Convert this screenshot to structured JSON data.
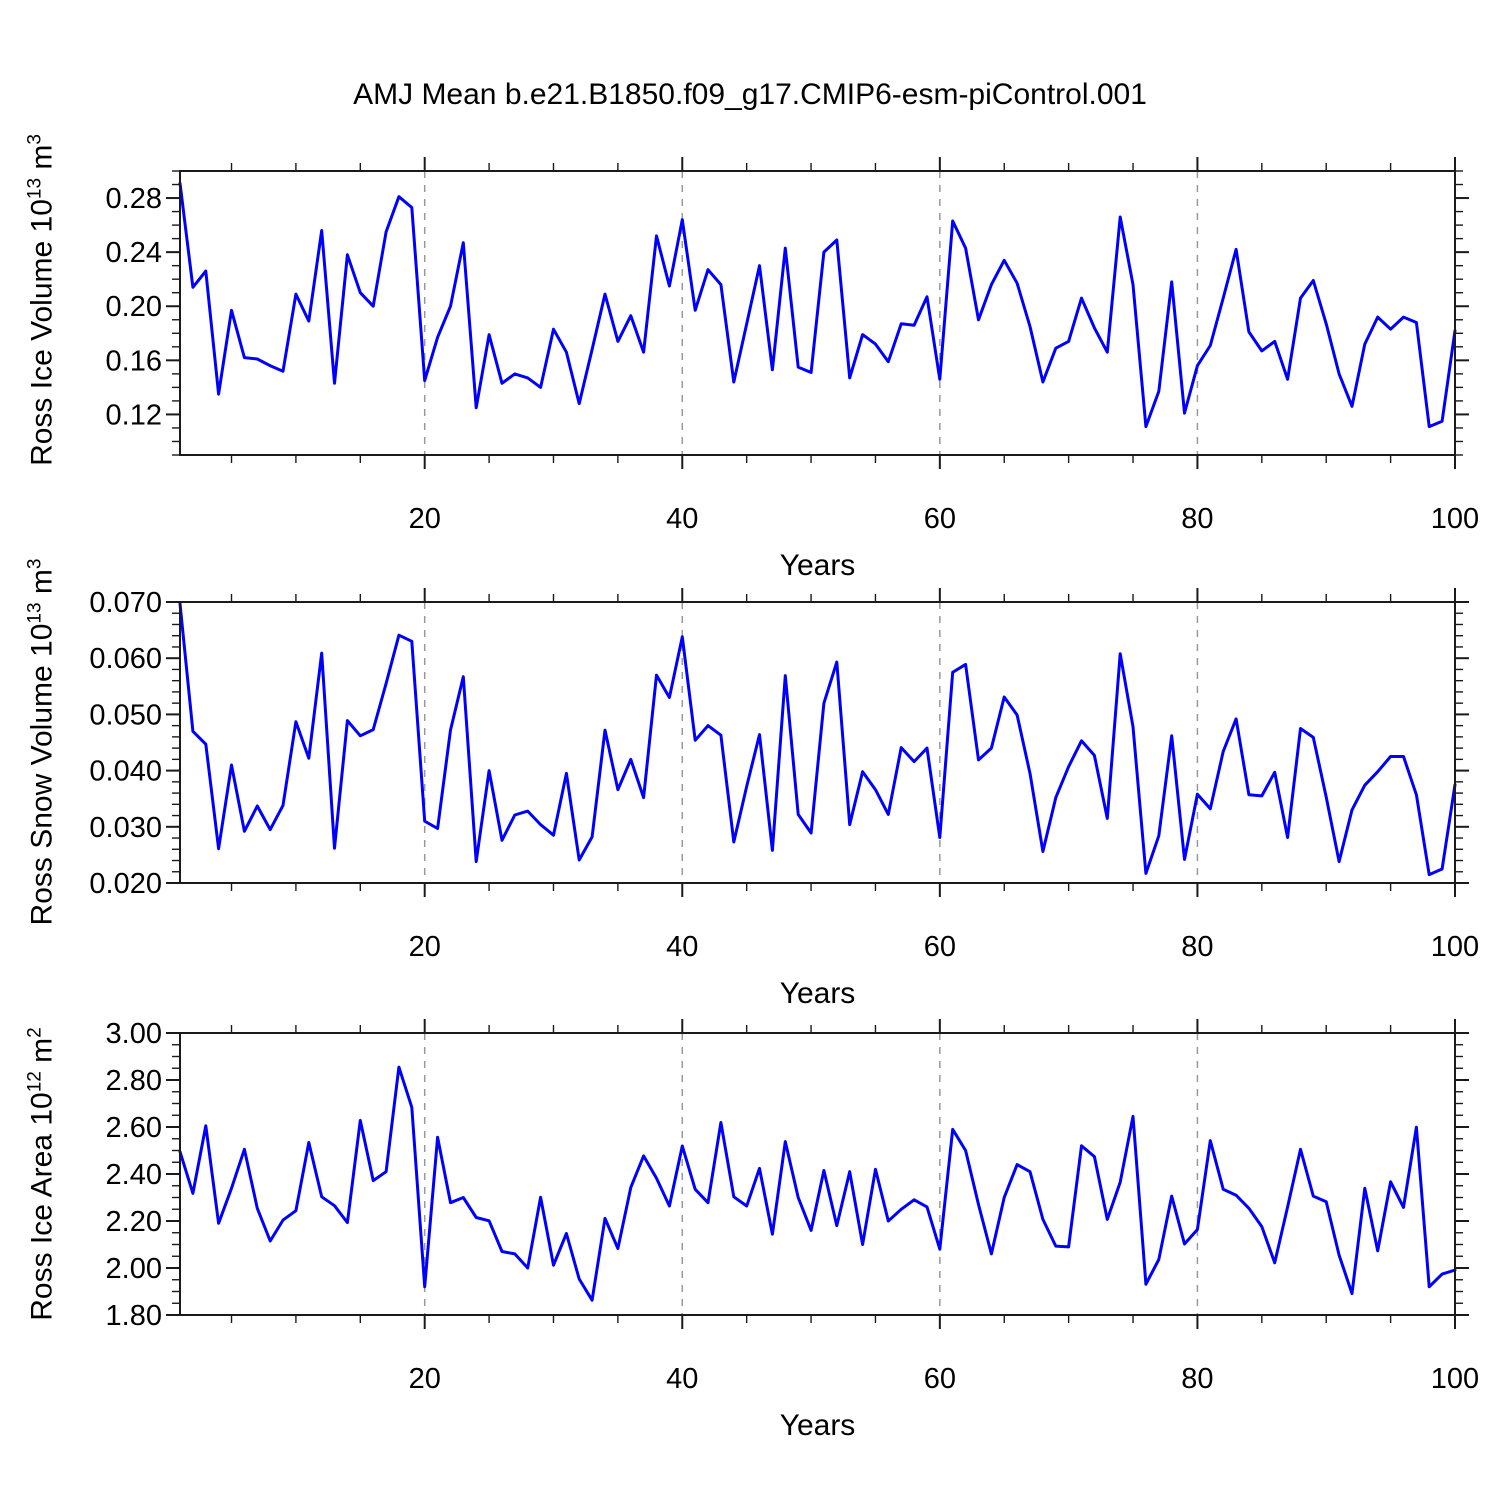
{
  "title": "AMJ Mean b.e21.B1850.f09_g17.CMIP6-esm-piControl.001",
  "line_color": "#0000ff",
  "gridline_color": "#999999",
  "axis_color": "#1a1a1a",
  "chart_data": [
    {
      "type": "line",
      "xlabel": "Years",
      "ylabel": "Ross Ice Volume 10^13 m^3",
      "ylabel_parts": {
        "text": "Ross Ice Volume 10",
        "sup": "13",
        "unit": " m",
        "unit_sup": "3"
      },
      "x_start": 1,
      "x_end": 100,
      "xticks": [
        20,
        40,
        60,
        80,
        100
      ],
      "x_minor_step": 5,
      "grid_x": [
        20,
        40,
        60,
        80
      ],
      "ylim": [
        0.09,
        0.3
      ],
      "y_minor_step": 0.01,
      "yticks": [
        {
          "label": "0.28",
          "value": 0.28
        },
        {
          "label": "0.24",
          "value": 0.24
        },
        {
          "label": "0.20",
          "value": 0.2
        },
        {
          "label": "0.16",
          "value": 0.16
        },
        {
          "label": "0.12",
          "value": 0.12
        }
      ],
      "values": [
        0.291,
        0.214,
        0.226,
        0.135,
        0.197,
        0.162,
        0.161,
        0.156,
        0.152,
        0.209,
        0.189,
        0.256,
        0.143,
        0.238,
        0.21,
        0.2,
        0.255,
        0.281,
        0.273,
        0.145,
        0.177,
        0.2,
        0.247,
        0.125,
        0.179,
        0.143,
        0.15,
        0.147,
        0.14,
        0.183,
        0.166,
        0.128,
        0.168,
        0.209,
        0.174,
        0.193,
        0.166,
        0.252,
        0.215,
        0.264,
        0.197,
        0.227,
        0.216,
        0.144,
        0.187,
        0.23,
        0.153,
        0.243,
        0.155,
        0.151,
        0.24,
        0.249,
        0.147,
        0.179,
        0.172,
        0.159,
        0.187,
        0.186,
        0.207,
        0.146,
        0.263,
        0.243,
        0.19,
        0.216,
        0.234,
        0.217,
        0.185,
        0.144,
        0.169,
        0.174,
        0.206,
        0.184,
        0.166,
        0.266,
        0.216,
        0.111,
        0.137,
        0.218,
        0.121,
        0.156,
        0.171,
        0.206,
        0.242,
        0.181,
        0.167,
        0.174,
        0.146,
        0.206,
        0.219,
        0.187,
        0.15,
        0.126,
        0.172,
        0.192,
        0.183,
        0.192,
        0.188,
        0.111,
        0.115,
        0.182
      ]
    },
    {
      "type": "line",
      "xlabel": "Years",
      "ylabel": "Ross Snow Volume 10^13 m^3",
      "ylabel_parts": {
        "text": "Ross Snow Volume 10",
        "sup": "13",
        "unit": " m",
        "unit_sup": "3"
      },
      "x_start": 1,
      "x_end": 100,
      "xticks": [
        20,
        40,
        60,
        80,
        100
      ],
      "x_minor_step": 5,
      "grid_x": [
        20,
        40,
        60,
        80
      ],
      "ylim": [
        0.02,
        0.07
      ],
      "y_minor_step": 0.002,
      "yticks": [
        {
          "label": "0.070",
          "value": 0.07
        },
        {
          "label": "0.060",
          "value": 0.06
        },
        {
          "label": "0.050",
          "value": 0.05
        },
        {
          "label": "0.040",
          "value": 0.04
        },
        {
          "label": "0.030",
          "value": 0.03
        },
        {
          "label": "0.020",
          "value": 0.02
        }
      ],
      "values": [
        0.0697,
        0.047,
        0.0447,
        0.0261,
        0.041,
        0.0292,
        0.0337,
        0.0295,
        0.0338,
        0.0487,
        0.0422,
        0.0609,
        0.0262,
        0.0489,
        0.0462,
        0.0473,
        0.0555,
        0.0641,
        0.063,
        0.031,
        0.0297,
        0.0472,
        0.0567,
        0.0238,
        0.04,
        0.0276,
        0.0321,
        0.0328,
        0.0304,
        0.0285,
        0.0395,
        0.0241,
        0.0282,
        0.0472,
        0.0366,
        0.042,
        0.0352,
        0.057,
        0.053,
        0.0638,
        0.0454,
        0.048,
        0.0463,
        0.0273,
        0.0372,
        0.0464,
        0.0258,
        0.0569,
        0.0322,
        0.0289,
        0.052,
        0.0593,
        0.0304,
        0.0398,
        0.0366,
        0.0322,
        0.0441,
        0.0416,
        0.044,
        0.0281,
        0.0575,
        0.0589,
        0.0419,
        0.044,
        0.0531,
        0.0499,
        0.0395,
        0.0256,
        0.0352,
        0.0407,
        0.0453,
        0.0427,
        0.0315,
        0.0608,
        0.0478,
        0.0217,
        0.0284,
        0.0462,
        0.0242,
        0.0358,
        0.0332,
        0.0434,
        0.0492,
        0.0357,
        0.0355,
        0.0397,
        0.0281,
        0.0475,
        0.0459,
        0.0353,
        0.0238,
        0.033,
        0.0374,
        0.0398,
        0.0425,
        0.0425,
        0.0357,
        0.0215,
        0.0225,
        0.0375
      ]
    },
    {
      "type": "line",
      "xlabel": "Years",
      "ylabel": "Ross Ice Area 10^12 m^2",
      "ylabel_parts": {
        "text": "Ross Ice Area 10",
        "sup": "12",
        "unit": " m",
        "unit_sup": "2"
      },
      "x_start": 1,
      "x_end": 100,
      "xticks": [
        20,
        40,
        60,
        80,
        100
      ],
      "x_minor_step": 5,
      "grid_x": [
        20,
        40,
        60,
        80
      ],
      "ylim": [
        1.8,
        3.0
      ],
      "y_minor_step": 0.05,
      "yticks": [
        {
          "label": "3.00",
          "value": 3.0
        },
        {
          "label": "2.80",
          "value": 2.8
        },
        {
          "label": "2.60",
          "value": 2.6
        },
        {
          "label": "2.40",
          "value": 2.4
        },
        {
          "label": "2.20",
          "value": 2.2
        },
        {
          "label": "2.00",
          "value": 2.0
        },
        {
          "label": "1.80",
          "value": 1.8
        }
      ],
      "values": [
        2.495,
        2.318,
        2.605,
        2.19,
        2.339,
        2.505,
        2.254,
        2.115,
        2.204,
        2.244,
        2.534,
        2.303,
        2.265,
        2.193,
        2.628,
        2.372,
        2.41,
        2.855,
        2.684,
        1.92,
        2.556,
        2.278,
        2.3,
        2.215,
        2.201,
        2.07,
        2.06,
        2.0,
        2.301,
        2.012,
        2.147,
        1.953,
        1.863,
        2.211,
        2.083,
        2.343,
        2.477,
        2.382,
        2.264,
        2.519,
        2.335,
        2.278,
        2.619,
        2.303,
        2.264,
        2.424,
        2.144,
        2.538,
        2.3,
        2.16,
        2.415,
        2.18,
        2.41,
        2.1,
        2.42,
        2.2,
        2.25,
        2.29,
        2.26,
        2.08,
        2.59,
        2.5,
        2.27,
        2.06,
        2.3,
        2.44,
        2.41,
        2.207,
        2.093,
        2.09,
        2.52,
        2.474,
        2.207,
        2.365,
        2.645,
        1.931,
        2.036,
        2.306,
        2.102,
        2.164,
        2.542,
        2.335,
        2.31,
        2.254,
        2.176,
        2.022,
        2.26,
        2.505,
        2.306,
        2.282,
        2.055,
        1.891,
        2.339,
        2.073,
        2.367,
        2.258,
        2.599,
        1.92,
        1.974,
        1.991
      ]
    }
  ]
}
